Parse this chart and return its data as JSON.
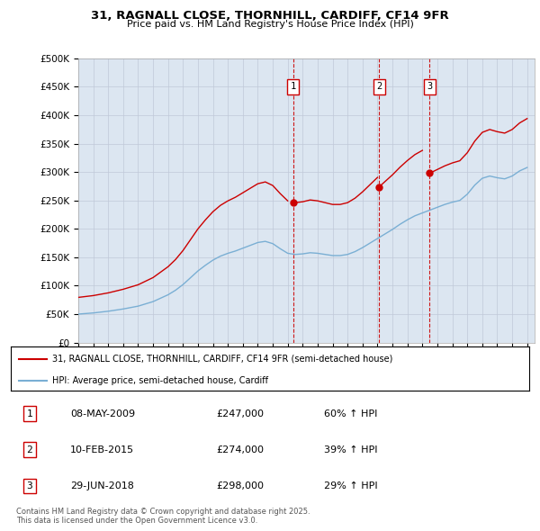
{
  "title_line1": "31, RAGNALL CLOSE, THORNHILL, CARDIFF, CF14 9FR",
  "title_line2": "Price paid vs. HM Land Registry's House Price Index (HPI)",
  "legend_label_red": "31, RAGNALL CLOSE, THORNHILL, CARDIFF, CF14 9FR (semi-detached house)",
  "legend_label_blue": "HPI: Average price, semi-detached house, Cardiff",
  "transactions": [
    {
      "num": 1,
      "date": "08-MAY-2009",
      "price": 247000,
      "pct": "60% ↑ HPI",
      "year": 2009.36
    },
    {
      "num": 2,
      "date": "10-FEB-2015",
      "price": 274000,
      "pct": "39% ↑ HPI",
      "year": 2015.11
    },
    {
      "num": 3,
      "date": "29-JUN-2018",
      "price": 298000,
      "pct": "29% ↑ HPI",
      "year": 2018.49
    }
  ],
  "footer": "Contains HM Land Registry data © Crown copyright and database right 2025.\nThis data is licensed under the Open Government Licence v3.0.",
  "red_color": "#cc0000",
  "blue_color": "#7aafd4",
  "background_color": "#dce6f1",
  "plot_bg_color": "#ffffff",
  "grid_color": "#c0c8d8",
  "ylim": [
    0,
    500000
  ],
  "xlim_start": 1995,
  "xlim_end": 2025.5
}
